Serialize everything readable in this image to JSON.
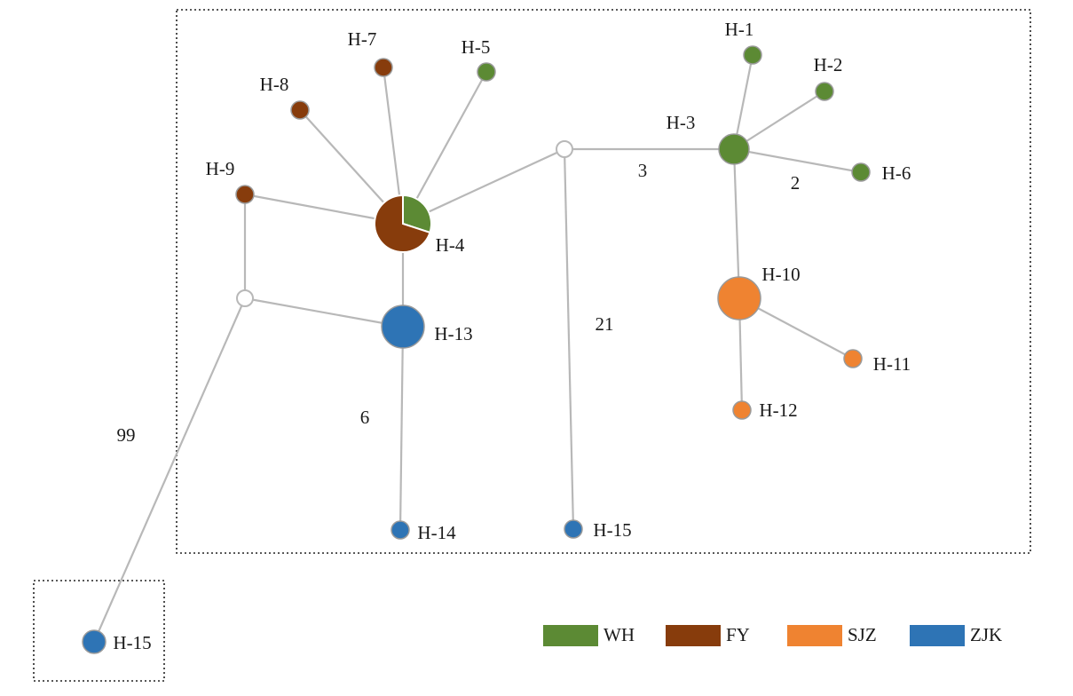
{
  "colors": {
    "WH": "#5c8a34",
    "FY": "#873c0c",
    "SJZ": "#ef8331",
    "ZJK": "#2e74b5",
    "edge": "#b8b8b8",
    "median": "#ffffff"
  },
  "nodes": [
    {
      "id": "H-1",
      "label": "H-1",
      "groups": {
        "WH": 1
      }
    },
    {
      "id": "H-2",
      "label": "H-2",
      "groups": {
        "WH": 1
      }
    },
    {
      "id": "H-3",
      "label": "H-3",
      "groups": {
        "WH": 1
      }
    },
    {
      "id": "H-4",
      "label": "H-4",
      "groups": {
        "WH": 0.3,
        "FY": 0.7
      }
    },
    {
      "id": "H-5",
      "label": "H-5",
      "groups": {
        "WH": 1
      }
    },
    {
      "id": "H-6",
      "label": "H-6",
      "groups": {
        "WH": 1
      }
    },
    {
      "id": "H-7",
      "label": "H-7",
      "groups": {
        "FY": 1
      }
    },
    {
      "id": "H-8",
      "label": "H-8",
      "groups": {
        "FY": 1
      }
    },
    {
      "id": "H-9",
      "label": "H-9",
      "groups": {
        "FY": 1
      }
    },
    {
      "id": "H-10",
      "label": "H-10",
      "groups": {
        "SJZ": 1
      }
    },
    {
      "id": "H-11",
      "label": "H-11",
      "groups": {
        "SJZ": 1
      }
    },
    {
      "id": "H-12",
      "label": "H-12",
      "groups": {
        "SJZ": 1
      }
    },
    {
      "id": "H-13",
      "label": "H-13",
      "groups": {
        "ZJK": 1
      }
    },
    {
      "id": "H-14",
      "label": "H-14",
      "groups": {
        "ZJK": 1
      }
    },
    {
      "id": "H-15a",
      "label": "H-15",
      "groups": {
        "ZJK": 1
      }
    },
    {
      "id": "H-15b",
      "label": "H-15",
      "groups": {
        "ZJK": 1
      }
    },
    {
      "id": "mv1",
      "label": "",
      "groups": {}
    },
    {
      "id": "mv2",
      "label": "",
      "groups": {}
    }
  ],
  "edges": [
    {
      "from": "H-4",
      "to": "H-7"
    },
    {
      "from": "H-4",
      "to": "H-5"
    },
    {
      "from": "H-4",
      "to": "H-8"
    },
    {
      "from": "H-4",
      "to": "H-9"
    },
    {
      "from": "H-4",
      "to": "mv1"
    },
    {
      "from": "mv1",
      "to": "H-3"
    },
    {
      "from": "H-3",
      "to": "H-1"
    },
    {
      "from": "H-3",
      "to": "H-2"
    },
    {
      "from": "H-3",
      "to": "H-6"
    },
    {
      "from": "H-3",
      "to": "H-10"
    },
    {
      "from": "H-10",
      "to": "H-11"
    },
    {
      "from": "H-10",
      "to": "H-12"
    },
    {
      "from": "mv1",
      "to": "H-15a"
    },
    {
      "from": "H-4",
      "to": "H-13"
    },
    {
      "from": "H-13",
      "to": "H-14"
    },
    {
      "from": "H-9",
      "to": "mv2"
    },
    {
      "from": "mv2",
      "to": "H-13"
    },
    {
      "from": "mv2",
      "to": "H-15b"
    }
  ],
  "edge_labels": [
    "3",
    "2",
    "21",
    "6",
    "99"
  ],
  "legend": [
    {
      "key": "WH",
      "label": "WH"
    },
    {
      "key": "FY",
      "label": "FY"
    },
    {
      "key": "SJZ",
      "label": "SJZ"
    },
    {
      "key": "ZJK",
      "label": "ZJK"
    }
  ]
}
